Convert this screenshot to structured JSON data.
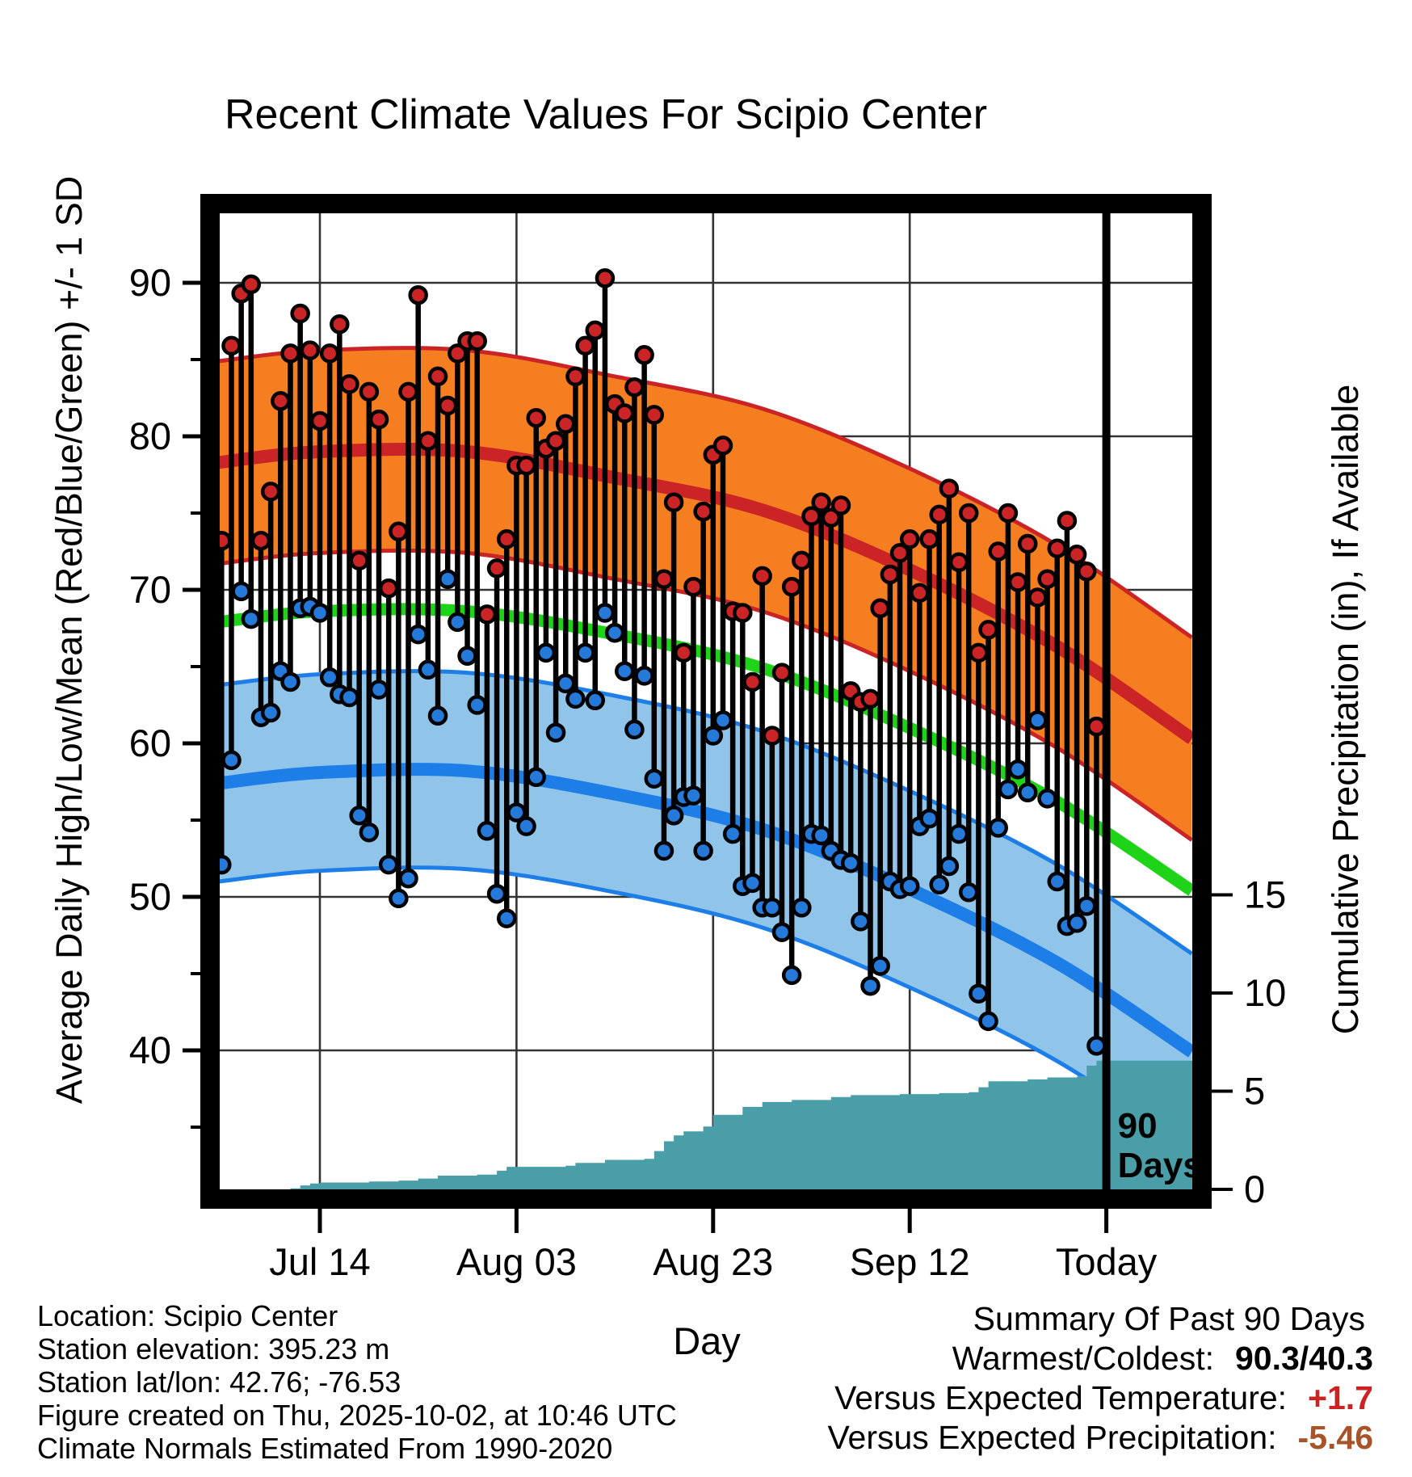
{
  "title": "Recent Climate Values For Scipio Center",
  "colors": {
    "high_band": "#F57E20",
    "high_line": "#CB2427",
    "mean_line": "#1FD319",
    "low_band": "#90C4E9",
    "low_line": "#1E7EE8",
    "high_dot": "#CB2427",
    "low_dot": "#2579D9",
    "precip_fill": "#4A9EA8",
    "stem": "#000000",
    "grid": "#333333",
    "temp_anomaly_value": "#CC2222",
    "precip_anomaly_value": "#A8542A"
  },
  "chart_data": {
    "type": "composite",
    "subtype": "daily high/low stems + climate normal bands + cumulative precipitation steps",
    "title": "Recent Climate Values For Scipio Center",
    "x_axis": {
      "label": "Day",
      "ticks": [
        {
          "day": 10,
          "label": "Jul 14"
        },
        {
          "day": 30,
          "label": "Aug 03"
        },
        {
          "day": 50,
          "label": "Aug 23"
        },
        {
          "day": 70,
          "label": "Sep 12"
        },
        {
          "day": 90,
          "label": "Today"
        }
      ],
      "day0_date": "Jul 04",
      "today_day": 90
    },
    "y_left": {
      "label": "Average Daily High/Low/Mean (Red/Blue/Green) +/- 1 SD",
      "ticks": [
        40,
        50,
        60,
        70,
        80,
        90
      ],
      "minor_ticks": [
        35,
        45,
        55,
        65,
        75,
        85
      ]
    },
    "y_right": {
      "label": "Cumulative Precipitation (in), If Available",
      "ticks": [
        0,
        5,
        10,
        15
      ]
    },
    "annotation": {
      "line1": "90",
      "line2": "Days"
    },
    "daily": {
      "dates": [
        "Jul 04",
        "Jul 05",
        "Jul 06",
        "Jul 07",
        "Jul 08",
        "Jul 09",
        "Jul 10",
        "Jul 11",
        "Jul 12",
        "Jul 13",
        "Jul 14",
        "Jul 15",
        "Jul 16",
        "Jul 17",
        "Jul 18",
        "Jul 19",
        "Jul 20",
        "Jul 21",
        "Jul 22",
        "Jul 23",
        "Jul 24",
        "Jul 25",
        "Jul 26",
        "Jul 27",
        "Jul 28",
        "Jul 29",
        "Jul 30",
        "Jul 31",
        "Aug 01",
        "Aug 02",
        "Aug 03",
        "Aug 04",
        "Aug 05",
        "Aug 06",
        "Aug 07",
        "Aug 08",
        "Aug 09",
        "Aug 10",
        "Aug 11",
        "Aug 12",
        "Aug 13",
        "Aug 14",
        "Aug 15",
        "Aug 16",
        "Aug 17",
        "Aug 18",
        "Aug 19",
        "Aug 20",
        "Aug 21",
        "Aug 22",
        "Aug 23",
        "Aug 24",
        "Aug 25",
        "Aug 26",
        "Aug 27",
        "Aug 28",
        "Aug 29",
        "Aug 30",
        "Aug 31",
        "Sep 01",
        "Sep 02",
        "Sep 03",
        "Sep 04",
        "Sep 05",
        "Sep 06",
        "Sep 07",
        "Sep 08",
        "Sep 09",
        "Sep 10",
        "Sep 11",
        "Sep 12",
        "Sep 13",
        "Sep 14",
        "Sep 15",
        "Sep 16",
        "Sep 17",
        "Sep 18",
        "Sep 19",
        "Sep 20",
        "Sep 21",
        "Sep 22",
        "Sep 23",
        "Sep 24",
        "Sep 25",
        "Sep 26",
        "Sep 27",
        "Sep 28",
        "Sep 29",
        "Sep 30",
        "Oct 01"
      ],
      "high": [
        73.2,
        85.9,
        89.3,
        89.9,
        73.2,
        76.4,
        82.3,
        85.4,
        88.0,
        85.6,
        81.0,
        85.4,
        87.3,
        83.4,
        71.9,
        82.9,
        81.1,
        70.1,
        73.8,
        82.9,
        89.2,
        79.7,
        83.9,
        82.0,
        85.4,
        86.2,
        86.2,
        68.4,
        71.4,
        73.3,
        78.1,
        78.1,
        81.2,
        79.2,
        79.7,
        80.8,
        83.9,
        85.9,
        86.9,
        90.3,
        82.1,
        81.5,
        83.2,
        85.3,
        81.4,
        70.7,
        75.7,
        65.9,
        70.2,
        75.1,
        78.8,
        79.4,
        68.6,
        68.5,
        64.0,
        70.9,
        60.5,
        64.6,
        70.2,
        71.9,
        74.8,
        75.7,
        74.7,
        75.5,
        63.4,
        62.7,
        62.9,
        68.8,
        71.0,
        72.4,
        73.3,
        69.8,
        73.3,
        74.9,
        76.6,
        71.8,
        75.0,
        65.9,
        67.4,
        72.5,
        75.0,
        70.5,
        73.0,
        69.5,
        70.7,
        72.7,
        74.5,
        72.3,
        71.2,
        61.1
      ],
      "low": [
        52.1,
        58.9,
        69.9,
        68.1,
        61.7,
        62.0,
        64.7,
        64.0,
        68.8,
        68.9,
        68.5,
        64.3,
        63.2,
        63.0,
        55.3,
        54.2,
        63.5,
        52.1,
        49.9,
        51.2,
        67.1,
        64.8,
        61.8,
        70.7,
        67.9,
        65.7,
        62.5,
        54.3,
        50.2,
        48.6,
        55.5,
        54.6,
        57.8,
        65.9,
        60.7,
        63.9,
        62.9,
        65.9,
        62.8,
        68.5,
        67.2,
        64.7,
        60.9,
        64.4,
        57.7,
        53.0,
        55.3,
        56.5,
        56.6,
        53.0,
        60.5,
        61.5,
        54.1,
        50.7,
        50.9,
        49.3,
        49.3,
        47.7,
        44.9,
        49.3,
        54.1,
        54.0,
        53.0,
        52.4,
        52.2,
        48.4,
        44.2,
        45.5,
        51.0,
        50.5,
        50.7,
        54.6,
        55.1,
        50.8,
        52.0,
        54.1,
        50.3,
        43.7,
        41.9,
        54.5,
        57.0,
        58.3,
        56.8,
        61.5,
        56.4,
        51.0,
        48.1,
        48.3,
        49.4,
        40.3
      ]
    },
    "normals": {
      "days": [
        -0.3,
        10,
        25,
        40,
        55,
        70,
        85,
        98.7
      ],
      "high_upper": [
        84.9,
        85.6,
        85.6,
        83.9,
        81.8,
        77.9,
        72.9,
        66.9
      ],
      "high_mean": [
        78.3,
        79.0,
        79.0,
        77.3,
        75.2,
        71.3,
        66.3,
        60.3
      ],
      "high_lower": [
        71.7,
        72.4,
        72.4,
        70.7,
        68.6,
        64.7,
        59.7,
        53.7
      ],
      "mean": [
        67.9,
        68.6,
        68.6,
        67.1,
        64.9,
        61.0,
        56.2,
        50.4
      ],
      "low_upper": [
        63.8,
        64.5,
        64.6,
        63.1,
        60.8,
        56.9,
        52.1,
        46.3
      ],
      "low_mean": [
        57.4,
        58.1,
        58.2,
        56.7,
        54.4,
        50.5,
        45.7,
        39.9
      ],
      "low_lower": [
        51.0,
        51.7,
        51.8,
        50.3,
        48.0,
        44.1,
        39.3,
        33.5
      ]
    },
    "precip_cumulative": [
      [
        0,
        0
      ],
      [
        7,
        0.05
      ],
      [
        8,
        0.2
      ],
      [
        9,
        0.3
      ],
      [
        10,
        0.35
      ],
      [
        15,
        0.4
      ],
      [
        18,
        0.45
      ],
      [
        20,
        0.55
      ],
      [
        22,
        0.7
      ],
      [
        26,
        0.75
      ],
      [
        28,
        0.95
      ],
      [
        29,
        1.15
      ],
      [
        35,
        1.2
      ],
      [
        36,
        1.35
      ],
      [
        39,
        1.5
      ],
      [
        43,
        1.55
      ],
      [
        44,
        1.95
      ],
      [
        45,
        2.45
      ],
      [
        46,
        2.75
      ],
      [
        47,
        2.95
      ],
      [
        49,
        3.2
      ],
      [
        50,
        3.8
      ],
      [
        53,
        4.2
      ],
      [
        55,
        4.45
      ],
      [
        58,
        4.55
      ],
      [
        62,
        4.7
      ],
      [
        64,
        4.8
      ],
      [
        69,
        4.85
      ],
      [
        73,
        4.9
      ],
      [
        76,
        4.95
      ],
      [
        77,
        5.2
      ],
      [
        78,
        5.5
      ],
      [
        82,
        5.6
      ],
      [
        84,
        5.7
      ],
      [
        87,
        5.75
      ],
      [
        88,
        6.3
      ],
      [
        89,
        6.55
      ],
      [
        98.7,
        6.55
      ]
    ]
  },
  "footer": {
    "lines": [
      "Location: Scipio Center",
      "Station elevation: 395.23 m",
      "Station lat/lon: 42.76; -76.53",
      "Figure created on Thu, 2025-10-02, at 10:46 UTC",
      "Climate Normals Estimated From 1990-2020"
    ]
  },
  "summary": {
    "title": "Summary Of Past 90 Days",
    "rows": [
      {
        "label": "Warmest/Coldest:",
        "value": "90.3/40.3"
      },
      {
        "label": "Versus Expected Temperature:",
        "value": "+1.7"
      },
      {
        "label": "Versus Expected Precipitation:",
        "value": "-5.46"
      }
    ]
  }
}
